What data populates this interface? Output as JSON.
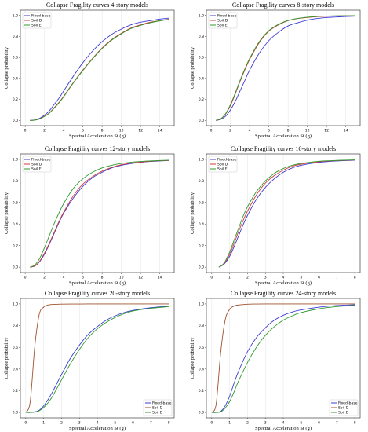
{
  "chart_data": [
    {
      "type": "line",
      "title": "Collapse Fragility curves 4-story models",
      "xlabel": "Spectral Acceleration St (g)",
      "ylabel": "Collapse probability",
      "xlim": [
        -0.5,
        15.5
      ],
      "ylim": [
        -0.05,
        1.05
      ],
      "xticks": [
        0,
        2,
        4,
        6,
        8,
        10,
        12,
        14
      ],
      "yticks": [
        0.0,
        0.2,
        0.4,
        0.6,
        0.8,
        1.0
      ],
      "legend": "top-left",
      "x": [
        0.5,
        1,
        1.5,
        2,
        2.5,
        3,
        3.5,
        4,
        5,
        6,
        7,
        8,
        9,
        10,
        11,
        12,
        13,
        14,
        15
      ],
      "series": [
        {
          "name": "Fixed-base",
          "color": "#3b3bd6",
          "values": [
            0.0,
            0.005,
            0.02,
            0.05,
            0.09,
            0.15,
            0.21,
            0.28,
            0.42,
            0.55,
            0.66,
            0.75,
            0.82,
            0.87,
            0.91,
            0.935,
            0.95,
            0.965,
            0.975
          ]
        },
        {
          "name": "Soil D",
          "color": "#d63b3b",
          "values": [
            0.0,
            0.003,
            0.015,
            0.04,
            0.07,
            0.12,
            0.17,
            0.23,
            0.36,
            0.48,
            0.59,
            0.69,
            0.77,
            0.83,
            0.88,
            0.91,
            0.935,
            0.95,
            0.965
          ]
        },
        {
          "name": "Soil E",
          "color": "#2e9a2e",
          "values": [
            0.0,
            0.003,
            0.014,
            0.038,
            0.068,
            0.115,
            0.165,
            0.225,
            0.355,
            0.475,
            0.585,
            0.685,
            0.765,
            0.825,
            0.875,
            0.905,
            0.93,
            0.948,
            0.962
          ]
        }
      ]
    },
    {
      "type": "line",
      "title": "Collapse Fragility curves 8-story models",
      "xlabel": "Spectral Acceleration St (g)",
      "ylabel": "Collapse probability",
      "xlim": [
        -0.5,
        15.5
      ],
      "ylim": [
        -0.05,
        1.05
      ],
      "xticks": [
        0,
        2,
        4,
        6,
        8,
        10,
        12,
        14
      ],
      "yticks": [
        0.0,
        0.2,
        0.4,
        0.6,
        0.8,
        1.0
      ],
      "legend": "top-left",
      "x": [
        0.5,
        1,
        1.5,
        2,
        2.5,
        3,
        3.5,
        4,
        5,
        6,
        7,
        8,
        9,
        10,
        11,
        12,
        13,
        14,
        15
      ],
      "series": [
        {
          "name": "Fixed-base",
          "color": "#3b3bd6",
          "values": [
            0.0,
            0.01,
            0.04,
            0.1,
            0.18,
            0.28,
            0.38,
            0.48,
            0.64,
            0.76,
            0.84,
            0.9,
            0.93,
            0.955,
            0.97,
            0.98,
            0.985,
            0.99,
            0.993
          ]
        },
        {
          "name": "Soil D",
          "color": "#d63b3b",
          "values": [
            0.0,
            0.015,
            0.06,
            0.14,
            0.25,
            0.37,
            0.48,
            0.58,
            0.74,
            0.85,
            0.91,
            0.95,
            0.97,
            0.98,
            0.988,
            0.992,
            0.995,
            0.997,
            0.998
          ]
        },
        {
          "name": "Soil E",
          "color": "#2e9a2e",
          "values": [
            0.0,
            0.016,
            0.065,
            0.15,
            0.26,
            0.38,
            0.49,
            0.59,
            0.75,
            0.855,
            0.915,
            0.952,
            0.972,
            0.983,
            0.99,
            0.994,
            0.996,
            0.997,
            0.998
          ]
        }
      ]
    },
    {
      "type": "line",
      "title": "Collapse Fragility curves 12-story models",
      "xlabel": "Spectral Acceleration St (g)",
      "ylabel": "Collapse probability",
      "xlim": [
        -0.5,
        15.5
      ],
      "ylim": [
        -0.05,
        1.05
      ],
      "xticks": [
        0,
        2,
        4,
        6,
        8,
        10,
        12,
        14
      ],
      "yticks": [
        0.0,
        0.2,
        0.4,
        0.6,
        0.8,
        1.0
      ],
      "legend": "top-left",
      "x": [
        0.5,
        1,
        1.5,
        2,
        2.5,
        3,
        3.5,
        4,
        5,
        6,
        7,
        8,
        9,
        10,
        11,
        12,
        13,
        14,
        15
      ],
      "series": [
        {
          "name": "Fixed-base",
          "color": "#3b3bd6",
          "values": [
            0.0,
            0.01,
            0.05,
            0.12,
            0.21,
            0.31,
            0.41,
            0.5,
            0.64,
            0.75,
            0.83,
            0.88,
            0.92,
            0.945,
            0.96,
            0.972,
            0.98,
            0.985,
            0.99
          ]
        },
        {
          "name": "Soil D",
          "color": "#d63b3b",
          "values": [
            0.0,
            0.012,
            0.055,
            0.13,
            0.22,
            0.32,
            0.42,
            0.51,
            0.66,
            0.77,
            0.84,
            0.89,
            0.925,
            0.95,
            0.965,
            0.975,
            0.982,
            0.987,
            0.99
          ]
        },
        {
          "name": "Soil E",
          "color": "#2e9a2e",
          "values": [
            0.0,
            0.02,
            0.08,
            0.18,
            0.29,
            0.4,
            0.5,
            0.59,
            0.73,
            0.82,
            0.88,
            0.92,
            0.945,
            0.962,
            0.973,
            0.98,
            0.985,
            0.989,
            0.992
          ]
        }
      ]
    },
    {
      "type": "line",
      "title": "Collapse Fragility curves 16-story models",
      "xlabel": "Spectral Acceleration St (g)",
      "ylabel": "Collapse probability",
      "xlim": [
        -0.3,
        8.3
      ],
      "ylim": [
        -0.05,
        1.05
      ],
      "xticks": [
        0,
        1,
        2,
        3,
        4,
        5,
        6,
        7,
        8
      ],
      "yticks": [
        0.0,
        0.2,
        0.4,
        0.6,
        0.8,
        1.0
      ],
      "legend": "top-left",
      "x": [
        0.4,
        0.7,
        1,
        1.25,
        1.5,
        1.75,
        2,
        2.5,
        3,
        3.5,
        4,
        4.5,
        5,
        6,
        7,
        8
      ],
      "series": [
        {
          "name": "Fixed-base",
          "color": "#3b3bd6",
          "values": [
            0.0,
            0.03,
            0.1,
            0.19,
            0.29,
            0.39,
            0.48,
            0.63,
            0.74,
            0.82,
            0.88,
            0.92,
            0.945,
            0.972,
            0.985,
            0.992
          ]
        },
        {
          "name": "Soil D",
          "color": "#d63b3b",
          "values": [
            0.0,
            0.035,
            0.12,
            0.22,
            0.33,
            0.43,
            0.52,
            0.67,
            0.78,
            0.85,
            0.9,
            0.935,
            0.955,
            0.978,
            0.988,
            0.994
          ]
        },
        {
          "name": "Soil E",
          "color": "#2e9a2e",
          "values": [
            0.0,
            0.04,
            0.14,
            0.25,
            0.36,
            0.47,
            0.56,
            0.7,
            0.8,
            0.87,
            0.915,
            0.945,
            0.962,
            0.982,
            0.99,
            0.995
          ]
        }
      ]
    },
    {
      "type": "line",
      "title": "Collapse Fragility curves 20-story models",
      "xlabel": "Spectral Acceleration St (g)",
      "ylabel": "Collapse probability",
      "xlim": [
        -0.3,
        8.3
      ],
      "ylim": [
        -0.05,
        1.05
      ],
      "xticks": [
        0,
        1,
        2,
        3,
        4,
        5,
        6,
        7,
        8
      ],
      "yticks": [
        0.0,
        0.2,
        0.4,
        0.6,
        0.8,
        1.0
      ],
      "legend": "bottom-right",
      "x": [
        0,
        0.25,
        0.5,
        0.75,
        1,
        1.25,
        1.5,
        2,
        2.5,
        3,
        3.5,
        4,
        4.5,
        5,
        5.5,
        6,
        7,
        8
      ],
      "series": [
        {
          "name": "Fixed-base",
          "color": "#3b3bd6",
          "values": [
            0.0,
            0.0,
            0.005,
            0.02,
            0.06,
            0.12,
            0.19,
            0.35,
            0.5,
            0.62,
            0.72,
            0.79,
            0.85,
            0.89,
            0.92,
            0.94,
            0.965,
            0.98
          ]
        },
        {
          "name": "Soil D",
          "color": "#a0522d",
          "values": [
            0.0,
            0.1,
            0.6,
            0.9,
            0.97,
            0.99,
            0.995,
            0.998,
            0.999,
            0.999,
            1.0,
            1.0,
            1.0,
            1.0,
            1.0,
            1.0,
            1.0,
            1.0
          ]
        },
        {
          "name": "Soil E",
          "color": "#2e9a2e",
          "values": [
            0.0,
            0.0,
            0.003,
            0.015,
            0.045,
            0.09,
            0.15,
            0.3,
            0.45,
            0.58,
            0.69,
            0.77,
            0.83,
            0.875,
            0.91,
            0.935,
            0.96,
            0.975
          ]
        }
      ]
    },
    {
      "type": "line",
      "title": "Collapse Fragility curves 24-story models",
      "xlabel": "Spectral Acceleration St (g)",
      "ylabel": "Collapse probability",
      "xlim": [
        -0.3,
        8.3
      ],
      "ylim": [
        -0.05,
        1.05
      ],
      "xticks": [
        0,
        1,
        2,
        3,
        4,
        5,
        6,
        7,
        8
      ],
      "yticks": [
        0.0,
        0.2,
        0.4,
        0.6,
        0.8,
        1.0
      ],
      "legend": "bottom-right",
      "x": [
        0,
        0.25,
        0.5,
        0.75,
        1,
        1.25,
        1.5,
        2,
        2.5,
        3,
        3.5,
        4,
        4.5,
        5,
        6,
        7,
        8
      ],
      "series": [
        {
          "name": "Fixed-base",
          "color": "#3b3bd6",
          "values": [
            0.0,
            0.0,
            0.01,
            0.06,
            0.15,
            0.27,
            0.38,
            0.56,
            0.69,
            0.78,
            0.85,
            0.895,
            0.925,
            0.945,
            0.97,
            0.985,
            0.992
          ]
        },
        {
          "name": "Soil D",
          "color": "#a0522d",
          "values": [
            0.0,
            0.08,
            0.55,
            0.85,
            0.95,
            0.98,
            0.99,
            0.997,
            0.999,
            1.0,
            1.0,
            1.0,
            1.0,
            1.0,
            1.0,
            1.0,
            1.0
          ]
        },
        {
          "name": "Soil E",
          "color": "#2e9a2e",
          "values": [
            0.0,
            0.0,
            0.006,
            0.04,
            0.1,
            0.19,
            0.29,
            0.46,
            0.6,
            0.71,
            0.79,
            0.85,
            0.89,
            0.92,
            0.955,
            0.975,
            0.987
          ]
        }
      ]
    }
  ]
}
